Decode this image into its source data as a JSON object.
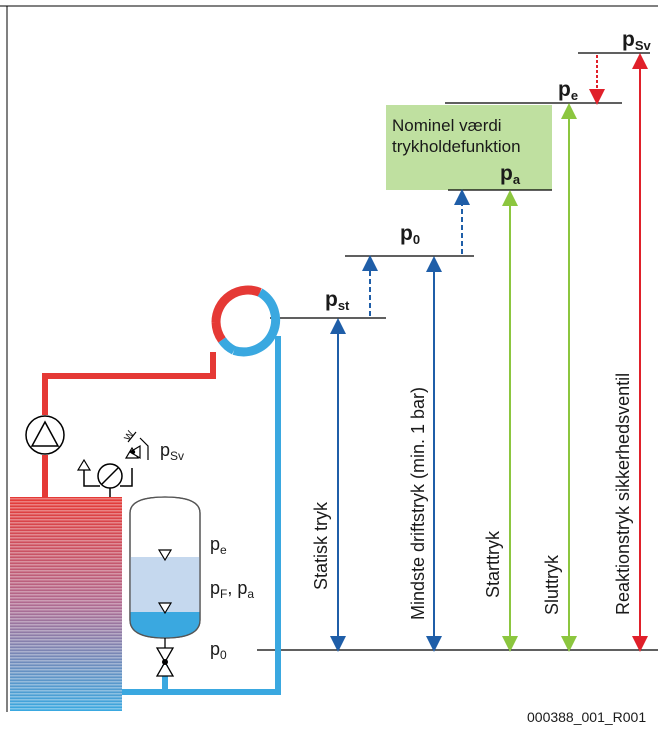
{
  "levels": {
    "p_sv": {
      "main": "p",
      "sub": "Sv"
    },
    "p_e": {
      "main": "p",
      "sub": "e"
    },
    "p_a": {
      "main": "p",
      "sub": "a"
    },
    "p_0": {
      "main": "p",
      "sub": "0"
    },
    "p_st": {
      "main": "p",
      "sub": "st"
    }
  },
  "nominal_box": {
    "line1": "Nominel værdi",
    "line2": "trykholdefunktion"
  },
  "arrows": {
    "statisk": "Statisk tryk",
    "mindste": "Mindste driftstryk (min. 1 bar)",
    "start": "Starttryk",
    "slut": "Sluttryk",
    "reaktion": "Reaktionstryk sikkerhedsventil"
  },
  "vessel_labels": {
    "pe": {
      "main": "p",
      "sub": "e"
    },
    "pf": {
      "main": "p",
      "sub": "F"
    },
    "pf_sep": ", ",
    "pa": {
      "main": "p",
      "sub": "a"
    },
    "p0": {
      "main": "p",
      "sub": "0"
    }
  },
  "valve_label": {
    "main": "p",
    "sub": "Sv"
  },
  "figure_id": "000388_001_R001",
  "colors": {
    "hot": "#e53935",
    "cold": "#3aa8e0",
    "dark_blue": "#1f5ea8",
    "green": "#8cc63f",
    "red_arrow": "#e0202a",
    "nominal_bg": "#bfe0a0"
  }
}
